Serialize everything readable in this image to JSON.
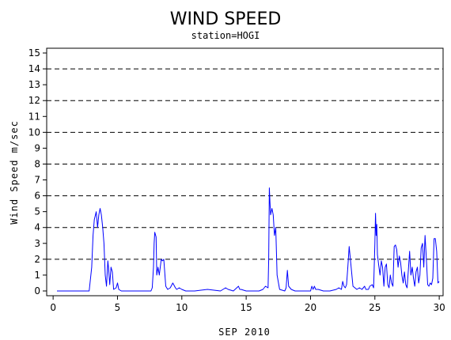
{
  "chart_data": {
    "type": "line",
    "title": "WIND SPEED",
    "subtitle": "station=HOGI",
    "xlabel": "SEP 2010",
    "ylabel": "Wind Speed m/sec",
    "xlim": [
      -0.5,
      30.3
    ],
    "ylim": [
      -0.3,
      15.3
    ],
    "x_ticks": [
      0,
      5,
      10,
      15,
      20,
      25,
      30
    ],
    "y_ticks": [
      0,
      1,
      2,
      3,
      4,
      5,
      6,
      7,
      8,
      9,
      10,
      11,
      12,
      13,
      14,
      15
    ],
    "gridlines_y": [
      2,
      4,
      6,
      8,
      10,
      12,
      14
    ],
    "grid_style": "dashed horizontal",
    "colors": {
      "series": "#0000ff",
      "grid": "#000000",
      "axis": "#000000"
    },
    "series": [
      {
        "x": [
          0.3,
          2.8,
          3.0,
          3.1,
          3.2,
          3.35,
          3.45,
          3.55,
          3.65,
          3.75,
          3.85,
          3.95,
          4.05,
          4.15,
          4.25,
          4.3,
          4.4,
          4.5,
          4.6,
          4.7,
          4.9,
          5.0,
          5.1,
          5.3,
          7.6,
          7.7,
          7.8,
          7.85,
          7.9,
          8.0,
          8.05,
          8.15,
          8.25,
          8.4,
          8.5,
          8.6,
          8.75,
          8.9,
          9.1,
          9.3,
          9.5,
          9.6,
          9.8,
          10.0,
          10.3,
          11.0,
          12.0,
          13.0,
          13.4,
          13.6,
          14.0,
          14.4,
          14.5,
          14.6,
          15.0,
          15.5,
          16.0,
          16.3,
          16.5,
          16.7,
          16.75,
          16.8,
          16.85,
          16.9,
          17.0,
          17.1,
          17.2,
          17.3,
          17.4,
          17.6,
          18.0,
          18.1,
          18.2,
          18.3,
          18.5,
          18.8,
          19.5,
          20.0,
          20.1,
          20.2,
          20.3,
          20.4,
          20.6,
          21.0,
          21.5,
          22.0,
          22.2,
          22.4,
          22.5,
          22.6,
          22.7,
          22.8,
          22.9,
          23.0,
          23.3,
          23.6,
          23.8,
          24.0,
          24.2,
          24.3,
          24.5,
          24.6,
          24.8,
          24.9,
          25.0,
          25.05,
          25.1,
          25.15,
          25.2,
          25.3,
          25.4,
          25.5,
          25.6,
          25.7,
          25.8,
          25.9,
          26.0,
          26.1,
          26.2,
          26.3,
          26.4,
          26.5,
          26.6,
          26.7,
          26.8,
          26.9,
          27.0,
          27.1,
          27.2,
          27.3,
          27.4,
          27.5,
          27.6,
          27.7,
          27.8,
          27.9,
          28.0,
          28.1,
          28.2,
          28.3,
          28.4,
          28.5,
          28.6,
          28.7,
          28.8,
          28.9,
          29.0,
          29.1,
          29.2,
          29.3,
          29.4,
          29.5,
          29.6,
          29.7,
          29.8,
          29.9,
          30.0
        ],
        "y": [
          0,
          0,
          1.5,
          3.5,
          4.5,
          5.0,
          4.0,
          4.8,
          5.2,
          4.8,
          4.0,
          3.0,
          1.0,
          0.3,
          1.9,
          1.5,
          0.4,
          1.5,
          1.2,
          0.1,
          0.2,
          0.5,
          0.1,
          0,
          0,
          0.2,
          1.5,
          3.0,
          3.7,
          3.4,
          1.0,
          1.5,
          1.0,
          2.0,
          1.9,
          2.0,
          0.3,
          0.1,
          0.2,
          0.5,
          0.2,
          0.1,
          0.2,
          0.1,
          0,
          0,
          0.1,
          0,
          0.2,
          0.1,
          0,
          0.3,
          0.1,
          0.1,
          0,
          0,
          0,
          0.1,
          0.3,
          0.2,
          2.0,
          6.5,
          5.6,
          4.8,
          5.2,
          4.8,
          3.5,
          4.0,
          1.0,
          0.1,
          0,
          0.2,
          1.3,
          0.3,
          0.1,
          0,
          0,
          0,
          0.3,
          0.1,
          0.3,
          0.1,
          0.1,
          0,
          0,
          0.1,
          0.2,
          0.1,
          0.6,
          0.3,
          0.2,
          0.4,
          1.5,
          2.8,
          0.3,
          0.1,
          0.2,
          0.1,
          0.3,
          0.1,
          0.1,
          0.3,
          0.4,
          0.2,
          3.0,
          4.9,
          3.5,
          4.2,
          2.3,
          1.6,
          1.0,
          1.9,
          1.5,
          0.3,
          1.5,
          1.7,
          0.4,
          0.2,
          1.0,
          0.5,
          0.3,
          2.8,
          2.9,
          2.6,
          1.5,
          2.2,
          1.8,
          1.0,
          0.5,
          1.2,
          0.4,
          0.2,
          1.3,
          2.5,
          1.0,
          1.5,
          0.8,
          0.3,
          1.2,
          1.5,
          0.5,
          1.0,
          2.7,
          3.0,
          1.5,
          3.5,
          2.0,
          0.4,
          0.3,
          0.5,
          0.4,
          0.8,
          3.3,
          3.3,
          2.5,
          0.5,
          0.6
        ]
      }
    ]
  }
}
